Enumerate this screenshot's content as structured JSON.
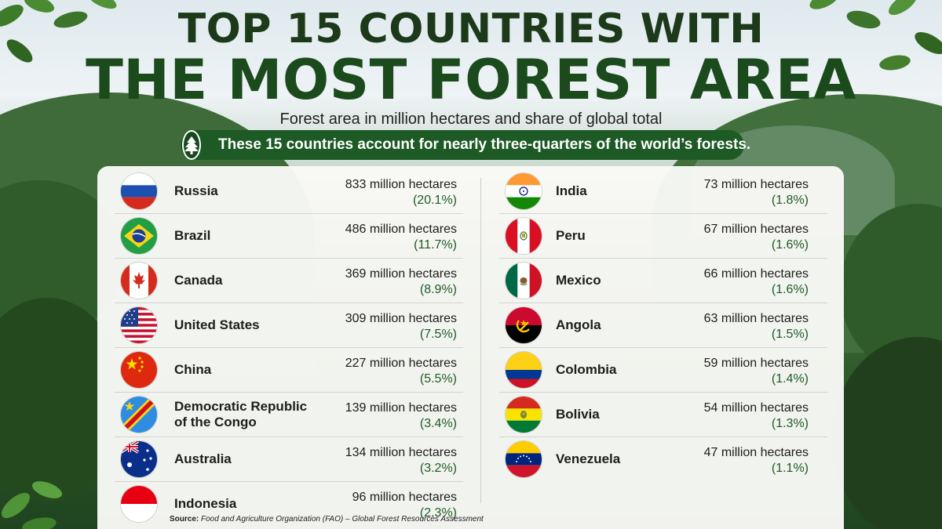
{
  "header": {
    "title_line1": "TOP 15 COUNTRIES WITH",
    "title_line2": "THE MOST FOREST AREA",
    "subtitle": "Forest area in million hectares and share of global total",
    "banner_text": "These 15 countries account for nearly three-quarters of the world’s forests.",
    "banner_icon": "tree-icon"
  },
  "colors": {
    "title": "#1c3a1a",
    "banner": "#1e5a25",
    "share_text": "#1e5a25"
  },
  "chart_data": {
    "type": "table",
    "unit": "million hectares",
    "rows": [
      {
        "country": "Russia",
        "hectares": "833 million hectares",
        "share": "(20.1%)",
        "value": 833,
        "percent": 20.1,
        "flag": "russia-flag"
      },
      {
        "country": "Brazil",
        "hectares": "486 million hectares",
        "share": "(11.7%)",
        "value": 486,
        "percent": 11.7,
        "flag": "brazil-flag"
      },
      {
        "country": "Canada",
        "hectares": "369 million hectares",
        "share": "(8.9%)",
        "value": 369,
        "percent": 8.9,
        "flag": "canada-flag"
      },
      {
        "country": "United States",
        "hectares": "309 million hectares",
        "share": "(7.5%)",
        "value": 309,
        "percent": 7.5,
        "flag": "usa-flag"
      },
      {
        "country": "China",
        "hectares": "227 million hectares",
        "share": "(5.5%)",
        "value": 227,
        "percent": 5.5,
        "flag": "china-flag"
      },
      {
        "country": "Democratic Republic of the Congo",
        "hectares": "139 million hectares",
        "share": "(3.4%)",
        "value": 139,
        "percent": 3.4,
        "flag": "drc-flag"
      },
      {
        "country": "Australia",
        "hectares": "134 million hectares",
        "share": "(3.2%)",
        "value": 134,
        "percent": 3.2,
        "flag": "australia-flag"
      },
      {
        "country": "Indonesia",
        "hectares": "96 million hectares",
        "share": "(2.3%)",
        "value": 96,
        "percent": 2.3,
        "flag": "indonesia-flag"
      },
      {
        "country": "India",
        "hectares": "73 million hectares",
        "share": "(1.8%)",
        "value": 73,
        "percent": 1.8,
        "flag": "india-flag"
      },
      {
        "country": "Peru",
        "hectares": "67 million hectares",
        "share": "(1.6%)",
        "value": 67,
        "percent": 1.6,
        "flag": "peru-flag"
      },
      {
        "country": "Mexico",
        "hectares": "66 million hectares",
        "share": "(1.6%)",
        "value": 66,
        "percent": 1.6,
        "flag": "mexico-flag"
      },
      {
        "country": "Angola",
        "hectares": "63 million hectares",
        "share": "(1.5%)",
        "value": 63,
        "percent": 1.5,
        "flag": "angola-flag"
      },
      {
        "country": "Colombia",
        "hectares": "59 million hectares",
        "share": "(1.4%)",
        "value": 59,
        "percent": 1.4,
        "flag": "colombia-flag"
      },
      {
        "country": "Bolivia",
        "hectares": "54 million hectares",
        "share": "(1.3%)",
        "value": 54,
        "percent": 1.3,
        "flag": "bolivia-flag"
      },
      {
        "country": "Venezuela",
        "hectares": "47 million hectares",
        "share": "(1.1%)",
        "value": 47,
        "percent": 1.1,
        "flag": "venezuela-flag"
      }
    ]
  },
  "source": {
    "label": "Source:",
    "text": "Food and Agriculture Organization (FAO) – Global Forest Resources Assessment"
  }
}
